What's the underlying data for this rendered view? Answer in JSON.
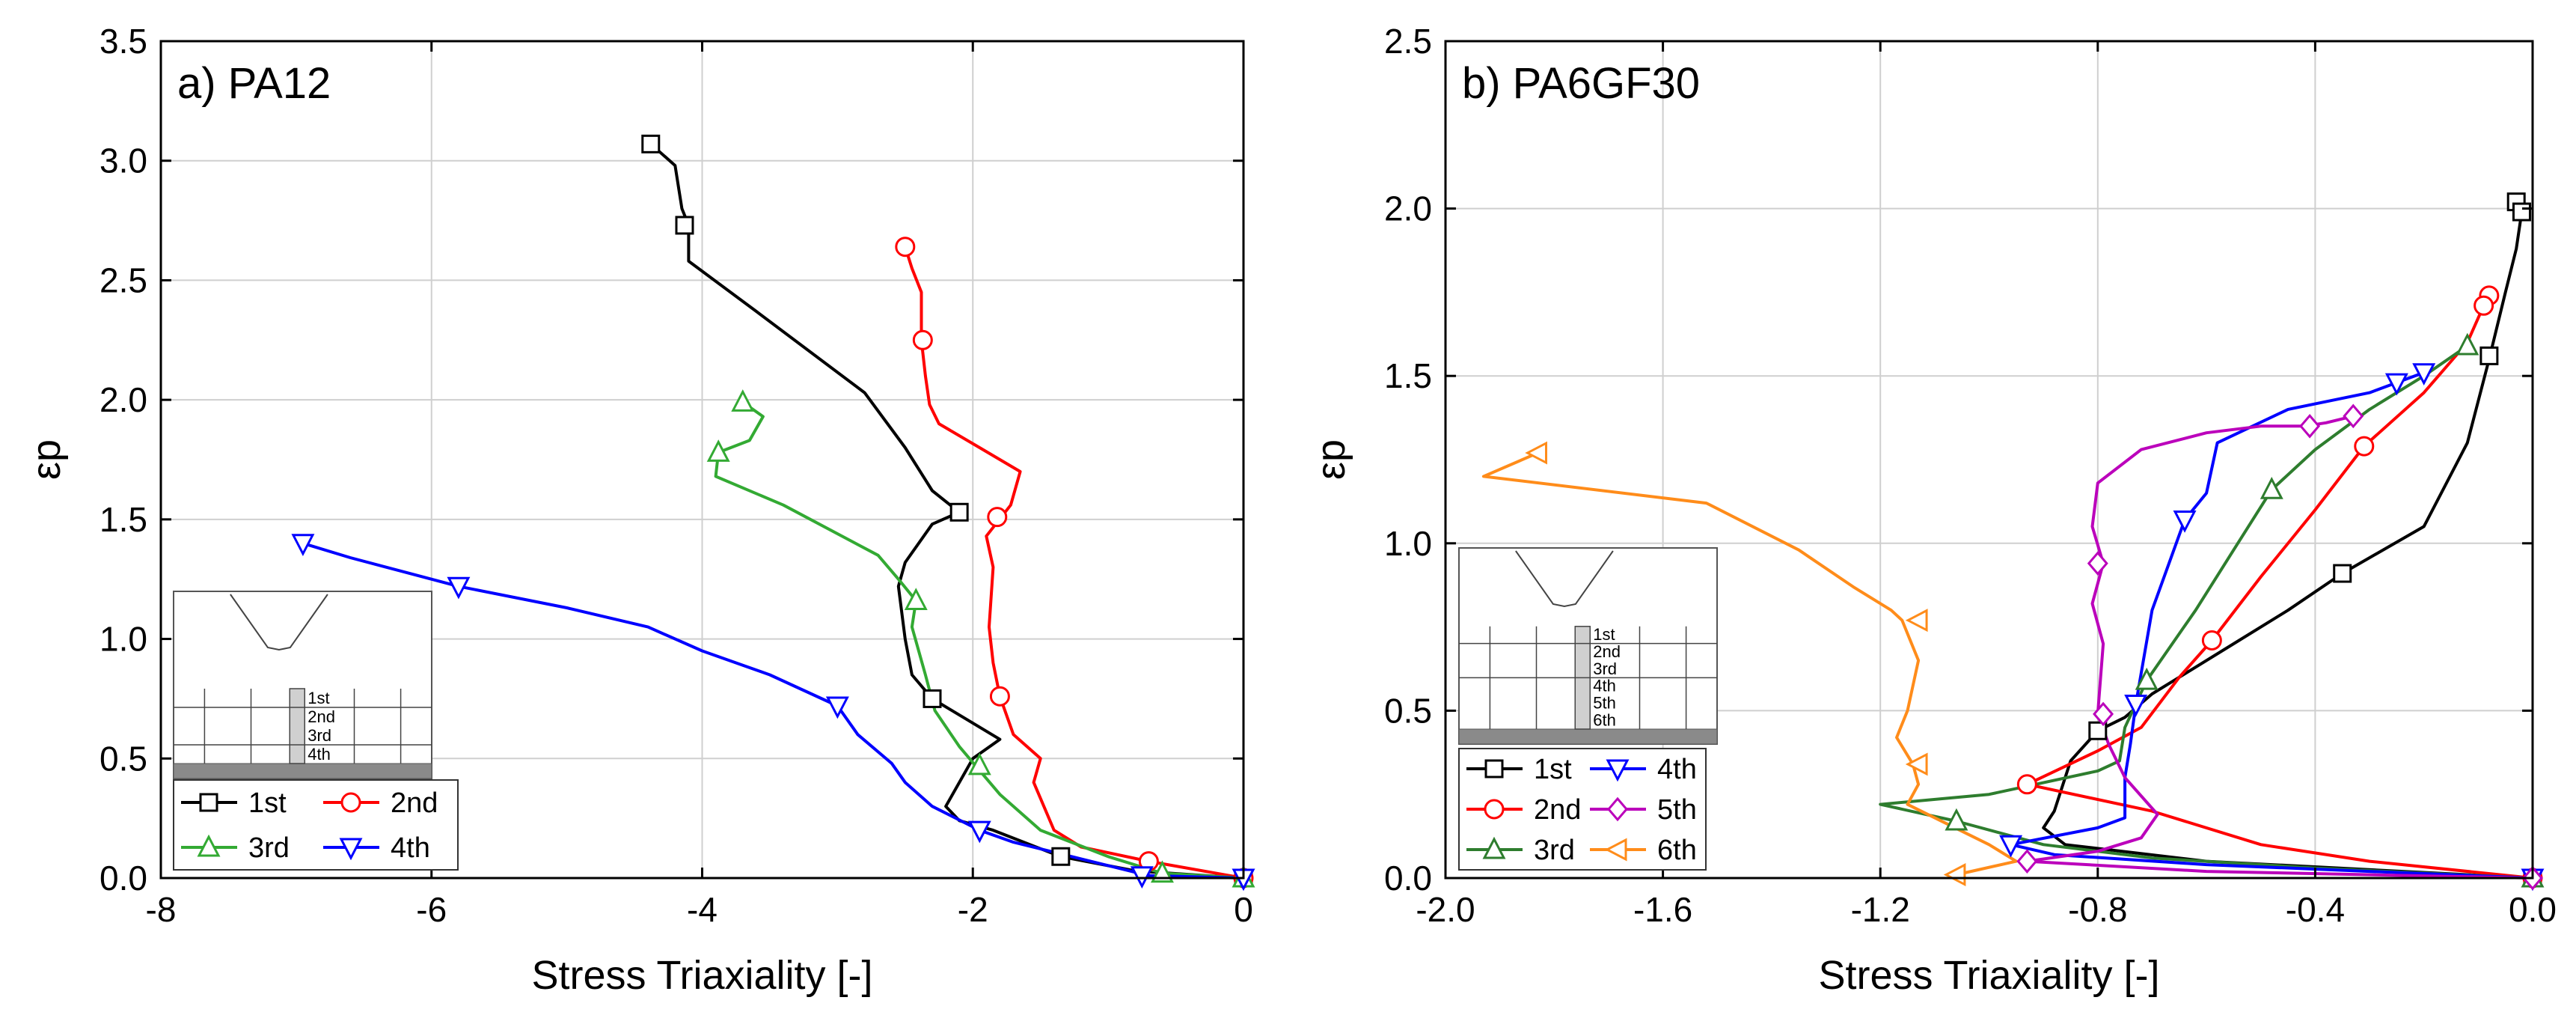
{
  "chart_data": [
    {
      "type": "line",
      "title": "a) PA12",
      "xlabel": "Stress Triaxiality [-]",
      "ylabel": "εp",
      "xlim": [
        -8,
        0
      ],
      "ylim": [
        0,
        3.5
      ],
      "xticks": [
        -8,
        -6,
        -4,
        -2,
        0
      ],
      "yticks": [
        0.0,
        0.5,
        1.0,
        1.5,
        2.0,
        2.5,
        3.0,
        3.5
      ],
      "xtick_labels": [
        "-8",
        "-6",
        "-4",
        "-2",
        "0"
      ],
      "ytick_labels": [
        "0.0",
        "0.5",
        "1.0",
        "1.5",
        "2.0",
        "2.5",
        "3.0",
        "3.5"
      ],
      "grid": true,
      "legend": "bottom-left",
      "inset_labels": [
        "1st",
        "2nd",
        "3rd",
        "4th"
      ],
      "series": [
        {
          "name": "1st",
          "color": "#000000",
          "marker": "square",
          "x": [
            -4.38,
            -4.2,
            -4.15,
            -4.1,
            -4.1,
            -3.6,
            -2.8,
            -2.5,
            -2.3,
            -2.1,
            -2.3,
            -2.5,
            -2.55,
            -2.5,
            -2.45,
            -2.3,
            -1.8,
            -2.0,
            -2.2,
            -2.1,
            -1.85,
            -1.35,
            -0.8,
            0.0
          ],
          "y": [
            3.07,
            2.98,
            2.8,
            2.73,
            2.58,
            2.37,
            2.03,
            1.8,
            1.62,
            1.53,
            1.48,
            1.32,
            1.22,
            1.0,
            0.85,
            0.75,
            0.58,
            0.5,
            0.3,
            0.24,
            0.2,
            0.09,
            0.03,
            0.0
          ],
          "markers_x": [
            -4.38,
            -4.13,
            -2.1,
            -2.3,
            -1.35,
            0.0
          ],
          "markers_y": [
            3.07,
            2.73,
            1.53,
            0.75,
            0.09,
            0.0
          ]
        },
        {
          "name": "2nd",
          "color": "#ff0000",
          "marker": "circle",
          "x": [
            -2.5,
            -2.45,
            -2.38,
            -2.38,
            -2.35,
            -2.32,
            -2.25,
            -1.95,
            -1.65,
            -1.72,
            -1.9,
            -1.85,
            -1.88,
            -1.85,
            -1.8,
            -1.7,
            -1.5,
            -1.55,
            -1.4,
            -1.2,
            -0.7,
            0.0
          ],
          "y": [
            2.64,
            2.55,
            2.45,
            2.25,
            2.1,
            1.98,
            1.9,
            1.8,
            1.7,
            1.56,
            1.43,
            1.3,
            1.05,
            0.9,
            0.76,
            0.6,
            0.5,
            0.4,
            0.2,
            0.13,
            0.07,
            0.0
          ],
          "markers_x": [
            -2.5,
            -2.37,
            -1.82,
            -1.8,
            -0.7,
            0.0
          ],
          "markers_y": [
            2.64,
            2.25,
            1.51,
            0.76,
            0.07,
            0.0
          ]
        },
        {
          "name": "3rd",
          "color": "#33aa33",
          "marker": "triangle-up",
          "x": [
            -3.7,
            -3.55,
            -3.65,
            -3.88,
            -3.9,
            -3.4,
            -2.7,
            -2.55,
            -2.42,
            -2.45,
            -2.35,
            -2.28,
            -2.1,
            -1.95,
            -1.8,
            -1.5,
            -1.0,
            -0.6,
            0.0
          ],
          "y": [
            1.99,
            1.93,
            1.83,
            1.78,
            1.68,
            1.56,
            1.35,
            1.25,
            1.16,
            1.05,
            0.85,
            0.7,
            0.55,
            0.45,
            0.35,
            0.2,
            0.09,
            0.02,
            0.0
          ],
          "markers_x": [
            -3.7,
            -3.88,
            -2.42,
            -1.95,
            -0.6,
            0.0
          ],
          "markers_y": [
            1.99,
            1.78,
            1.16,
            0.47,
            0.02,
            0.0
          ]
        },
        {
          "name": "4th",
          "color": "#0000ff",
          "marker": "triangle-down",
          "x": [
            -6.95,
            -6.6,
            -5.8,
            -5.0,
            -4.4,
            -4.0,
            -3.5,
            -3.0,
            -2.85,
            -2.6,
            -2.5,
            -2.3,
            -1.95,
            -1.7,
            -1.2,
            -0.7,
            0.0
          ],
          "y": [
            1.4,
            1.34,
            1.22,
            1.13,
            1.05,
            0.95,
            0.85,
            0.72,
            0.6,
            0.48,
            0.4,
            0.3,
            0.2,
            0.15,
            0.08,
            0.01,
            0.0
          ],
          "markers_x": [
            -6.95,
            -5.8,
            -3.0,
            -1.95,
            -0.75,
            0.0
          ],
          "markers_y": [
            1.4,
            1.22,
            0.72,
            0.2,
            0.01,
            0.0
          ]
        }
      ]
    },
    {
      "type": "line",
      "title": "b) PA6GF30",
      "xlabel": "Stress Triaxiality [-]",
      "ylabel": "εp",
      "xlim": [
        -2.0,
        0.0
      ],
      "ylim": [
        0,
        2.5
      ],
      "xticks": [
        -2.0,
        -1.6,
        -1.2,
        -0.8,
        -0.4,
        0.0
      ],
      "yticks": [
        0.0,
        0.5,
        1.0,
        1.5,
        2.0,
        2.5
      ],
      "xtick_labels": [
        "-2.0",
        "-1.6",
        "-1.2",
        "-0.8",
        "-0.4",
        "0.0"
      ],
      "ytick_labels": [
        "0.0",
        "0.5",
        "1.0",
        "1.5",
        "2.0",
        "2.5"
      ],
      "grid": true,
      "legend": "bottom-left",
      "inset_labels": [
        "1st",
        "2nd",
        "3rd",
        "4th",
        "5th",
        "6th"
      ],
      "series": [
        {
          "name": "1st",
          "color": "#000000",
          "marker": "square",
          "x": [
            -0.03,
            -0.02,
            -0.03,
            -0.05,
            -0.08,
            -0.12,
            -0.2,
            -0.35,
            -0.45,
            -0.55,
            -0.65,
            -0.7,
            -0.75,
            -0.8,
            -0.85,
            -0.88,
            -0.9,
            -0.86,
            -0.6,
            0.0
          ],
          "y": [
            2.02,
            1.99,
            1.88,
            1.75,
            1.55,
            1.3,
            1.05,
            0.91,
            0.8,
            0.7,
            0.6,
            0.55,
            0.48,
            0.44,
            0.35,
            0.2,
            0.15,
            0.1,
            0.05,
            0.0
          ],
          "markers_x": [
            -0.03,
            -0.02,
            -0.08,
            -0.35,
            -0.8,
            0.0
          ],
          "markers_y": [
            2.02,
            1.99,
            1.56,
            0.91,
            0.44,
            0.0
          ]
        },
        {
          "name": "2nd",
          "color": "#ff0000",
          "marker": "circle",
          "x": [
            -0.08,
            -0.09,
            -0.12,
            -0.2,
            -0.31,
            -0.4,
            -0.5,
            -0.59,
            -0.65,
            -0.72,
            -0.8,
            -0.93,
            -0.7,
            -0.5,
            -0.3,
            0.0
          ],
          "y": [
            1.74,
            1.71,
            1.6,
            1.45,
            1.29,
            1.1,
            0.9,
            0.71,
            0.6,
            0.45,
            0.38,
            0.28,
            0.2,
            0.1,
            0.05,
            0.0
          ],
          "markers_x": [
            -0.08,
            -0.09,
            -0.31,
            -0.59,
            -0.93,
            0.0
          ],
          "markers_y": [
            1.74,
            1.71,
            1.29,
            0.71,
            0.28,
            0.0
          ]
        },
        {
          "name": "3rd",
          "color": "#2e7d2e",
          "marker": "triangle-up",
          "x": [
            -0.12,
            -0.2,
            -0.3,
            -0.4,
            -0.48,
            -0.55,
            -0.62,
            -0.71,
            -0.75,
            -0.76,
            -0.8,
            -1.0,
            -1.2,
            -1.06,
            -0.9,
            -0.7,
            -0.4,
            0.0
          ],
          "y": [
            1.59,
            1.5,
            1.4,
            1.28,
            1.16,
            0.98,
            0.8,
            0.59,
            0.45,
            0.35,
            0.32,
            0.25,
            0.22,
            0.17,
            0.1,
            0.06,
            0.03,
            0.0
          ],
          "markers_x": [
            -0.12,
            -0.48,
            -0.71,
            -1.06,
            0.0
          ],
          "markers_y": [
            1.59,
            1.16,
            0.59,
            0.17,
            0.0
          ]
        },
        {
          "name": "4th",
          "color": "#0000ff",
          "marker": "triangle-down",
          "x": [
            -0.2,
            -0.25,
            -0.3,
            -0.45,
            -0.58,
            -0.6,
            -0.64,
            -0.7,
            -0.73,
            -0.74,
            -0.75,
            -0.75,
            -0.8,
            -0.96,
            -0.88,
            -0.6,
            -0.3,
            0.0
          ],
          "y": [
            1.51,
            1.48,
            1.45,
            1.4,
            1.3,
            1.15,
            1.07,
            0.8,
            0.52,
            0.4,
            0.3,
            0.18,
            0.15,
            0.1,
            0.07,
            0.04,
            0.02,
            0.0
          ],
          "markers_x": [
            -0.2,
            -0.25,
            -0.64,
            -0.73,
            -0.96,
            0.0
          ],
          "markers_y": [
            1.51,
            1.48,
            1.07,
            0.52,
            0.1,
            0.0
          ]
        },
        {
          "name": "5th",
          "color": "#bb00bb",
          "marker": "diamond",
          "x": [
            -0.33,
            -0.38,
            -0.42,
            -0.5,
            -0.6,
            -0.72,
            -0.8,
            -0.81,
            -0.79,
            -0.81,
            -0.79,
            -0.8,
            -0.78,
            -0.75,
            -0.69,
            -0.72,
            -0.8,
            -0.93,
            -0.6,
            0.0
          ],
          "y": [
            1.38,
            1.36,
            1.35,
            1.35,
            1.33,
            1.28,
            1.18,
            1.05,
            0.94,
            0.82,
            0.7,
            0.49,
            0.4,
            0.3,
            0.19,
            0.12,
            0.08,
            0.05,
            0.02,
            0.0
          ],
          "markers_x": [
            -0.33,
            -0.41,
            -0.8,
            -0.79,
            -0.93,
            0.0
          ],
          "markers_y": [
            1.38,
            1.35,
            0.94,
            0.49,
            0.05,
            0.0
          ]
        },
        {
          "name": "6th",
          "color": "#ff8c1a",
          "marker": "triangle-left",
          "x": [
            -1.83,
            -1.93,
            -1.52,
            -1.35,
            -1.25,
            -1.18,
            -1.16,
            -1.13,
            -1.15,
            -1.17,
            -1.14,
            -1.13,
            -1.15,
            -1.0,
            -0.95,
            -1.06
          ],
          "y": [
            1.27,
            1.2,
            1.12,
            0.98,
            0.87,
            0.8,
            0.77,
            0.65,
            0.5,
            0.42,
            0.34,
            0.28,
            0.22,
            0.1,
            0.05,
            0.01
          ],
          "markers_x": [
            -1.83,
            -1.13,
            -1.13,
            -1.06
          ],
          "markers_y": [
            1.27,
            0.77,
            0.34,
            0.01
          ]
        }
      ]
    }
  ]
}
